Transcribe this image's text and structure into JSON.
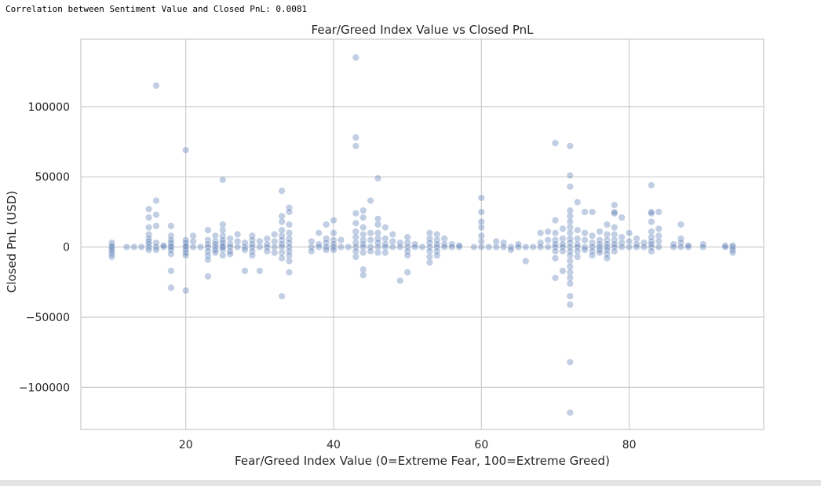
{
  "output": {
    "text": "Correlation between Sentiment Value and Closed PnL: 0.0081"
  },
  "chart_data": {
    "type": "scatter",
    "title": "Fear/Greed Index Value vs Closed PnL",
    "xlabel": "Fear/Greed Index Value (0=Extreme Fear, 100=Extreme Greed)",
    "ylabel": "Closed PnL (USD)",
    "xlim": [
      5.8,
      98.2
    ],
    "ylim": [
      -130000,
      148000
    ],
    "xticks": [
      20,
      40,
      60,
      80
    ],
    "xtick_labels": [
      "20",
      "40",
      "60",
      "80"
    ],
    "yticks": [
      -100000,
      -50000,
      0,
      50000,
      100000
    ],
    "ytick_labels": [
      "−100000",
      "−50000",
      "0",
      "50000",
      "100000"
    ],
    "grid": true,
    "point_color": "#4c72b0",
    "point_alpha": 0.35,
    "points": [
      [
        10,
        3000
      ],
      [
        10,
        1000
      ],
      [
        10,
        0
      ],
      [
        10,
        -1500
      ],
      [
        10,
        -3000
      ],
      [
        10,
        -5000
      ],
      [
        10,
        -7000
      ],
      [
        12,
        0
      ],
      [
        13,
        0
      ],
      [
        14,
        0
      ],
      [
        15,
        27000
      ],
      [
        15,
        21000
      ],
      [
        15,
        14000
      ],
      [
        15,
        9000
      ],
      [
        15,
        6000
      ],
      [
        15,
        4000
      ],
      [
        15,
        2000
      ],
      [
        15,
        0
      ],
      [
        15,
        -2000
      ],
      [
        16,
        115000
      ],
      [
        16,
        33000
      ],
      [
        16,
        23000
      ],
      [
        16,
        15000
      ],
      [
        16,
        3000
      ],
      [
        16,
        0
      ],
      [
        16,
        -2000
      ],
      [
        17,
        0
      ],
      [
        17,
        1000
      ],
      [
        18,
        15000
      ],
      [
        18,
        8000
      ],
      [
        18,
        5000
      ],
      [
        18,
        3000
      ],
      [
        18,
        1000
      ],
      [
        18,
        0
      ],
      [
        18,
        -2000
      ],
      [
        18,
        -5000
      ],
      [
        18,
        -17000
      ],
      [
        18,
        -29000
      ],
      [
        20,
        69000
      ],
      [
        20,
        5000
      ],
      [
        20,
        3000
      ],
      [
        20,
        1000
      ],
      [
        20,
        0
      ],
      [
        20,
        -2000
      ],
      [
        20,
        -4000
      ],
      [
        20,
        -6000
      ],
      [
        20,
        -31000
      ],
      [
        21,
        8000
      ],
      [
        21,
        4000
      ],
      [
        21,
        0
      ],
      [
        22,
        0
      ],
      [
        23,
        12000
      ],
      [
        23,
        5000
      ],
      [
        23,
        2000
      ],
      [
        23,
        0
      ],
      [
        23,
        -3000
      ],
      [
        23,
        -6000
      ],
      [
        23,
        -9000
      ],
      [
        23,
        -21000
      ],
      [
        24,
        8000
      ],
      [
        24,
        4000
      ],
      [
        24,
        2000
      ],
      [
        24,
        0
      ],
      [
        24,
        -2000
      ],
      [
        24,
        -4000
      ],
      [
        25,
        48000
      ],
      [
        25,
        16000
      ],
      [
        25,
        12000
      ],
      [
        25,
        8000
      ],
      [
        25,
        5000
      ],
      [
        25,
        3000
      ],
      [
        25,
        1000
      ],
      [
        25,
        0
      ],
      [
        25,
        -2000
      ],
      [
        25,
        -6000
      ],
      [
        26,
        6000
      ],
      [
        26,
        2000
      ],
      [
        26,
        0
      ],
      [
        26,
        -3000
      ],
      [
        26,
        -5000
      ],
      [
        27,
        9000
      ],
      [
        27,
        4000
      ],
      [
        27,
        0
      ],
      [
        28,
        3000
      ],
      [
        28,
        0
      ],
      [
        28,
        -2000
      ],
      [
        28,
        -17000
      ],
      [
        29,
        8000
      ],
      [
        29,
        5000
      ],
      [
        29,
        2000
      ],
      [
        29,
        0
      ],
      [
        29,
        -3000
      ],
      [
        29,
        -6000
      ],
      [
        30,
        4000
      ],
      [
        30,
        0
      ],
      [
        30,
        -17000
      ],
      [
        31,
        6000
      ],
      [
        31,
        2000
      ],
      [
        31,
        0
      ],
      [
        31,
        -3000
      ],
      [
        32,
        9000
      ],
      [
        32,
        4000
      ],
      [
        32,
        0
      ],
      [
        32,
        -4000
      ],
      [
        33,
        40000
      ],
      [
        33,
        22000
      ],
      [
        33,
        18000
      ],
      [
        33,
        12000
      ],
      [
        33,
        8000
      ],
      [
        33,
        5000
      ],
      [
        33,
        2000
      ],
      [
        33,
        0
      ],
      [
        33,
        -4000
      ],
      [
        33,
        -8000
      ],
      [
        33,
        -35000
      ],
      [
        34,
        28000
      ],
      [
        34,
        25000
      ],
      [
        34,
        16000
      ],
      [
        34,
        10000
      ],
      [
        34,
        6000
      ],
      [
        34,
        3000
      ],
      [
        34,
        0
      ],
      [
        34,
        -3000
      ],
      [
        34,
        -6000
      ],
      [
        34,
        -10000
      ],
      [
        34,
        -18000
      ],
      [
        37,
        4000
      ],
      [
        37,
        0
      ],
      [
        37,
        -3000
      ],
      [
        38,
        10000
      ],
      [
        38,
        2000
      ],
      [
        38,
        0
      ],
      [
        39,
        16000
      ],
      [
        39,
        6000
      ],
      [
        39,
        3000
      ],
      [
        39,
        0
      ],
      [
        39,
        -2000
      ],
      [
        40,
        19000
      ],
      [
        40,
        10000
      ],
      [
        40,
        5000
      ],
      [
        40,
        2000
      ],
      [
        40,
        0
      ],
      [
        40,
        -2000
      ],
      [
        41,
        5000
      ],
      [
        41,
        0
      ],
      [
        42,
        0
      ],
      [
        43,
        135000
      ],
      [
        43,
        78000
      ],
      [
        43,
        72000
      ],
      [
        43,
        24000
      ],
      [
        43,
        17000
      ],
      [
        43,
        11000
      ],
      [
        43,
        7000
      ],
      [
        43,
        3000
      ],
      [
        43,
        0
      ],
      [
        43,
        -3000
      ],
      [
        43,
        -7000
      ],
      [
        44,
        26000
      ],
      [
        44,
        21000
      ],
      [
        44,
        14000
      ],
      [
        44,
        9000
      ],
      [
        44,
        5000
      ],
      [
        44,
        2000
      ],
      [
        44,
        0
      ],
      [
        44,
        -4000
      ],
      [
        44,
        -16000
      ],
      [
        44,
        -20000
      ],
      [
        45,
        33000
      ],
      [
        45,
        10000
      ],
      [
        45,
        5000
      ],
      [
        45,
        0
      ],
      [
        45,
        -3000
      ],
      [
        46,
        49000
      ],
      [
        46,
        20000
      ],
      [
        46,
        16000
      ],
      [
        46,
        10000
      ],
      [
        46,
        6000
      ],
      [
        46,
        3000
      ],
      [
        46,
        0
      ],
      [
        46,
        -4000
      ],
      [
        47,
        14000
      ],
      [
        47,
        6000
      ],
      [
        47,
        2000
      ],
      [
        47,
        0
      ],
      [
        47,
        -4000
      ],
      [
        48,
        9000
      ],
      [
        48,
        4000
      ],
      [
        48,
        0
      ],
      [
        49,
        3000
      ],
      [
        49,
        0
      ],
      [
        49,
        -24000
      ],
      [
        50,
        7000
      ],
      [
        50,
        3000
      ],
      [
        50,
        0
      ],
      [
        50,
        -3000
      ],
      [
        50,
        -6000
      ],
      [
        50,
        -18000
      ],
      [
        51,
        2000
      ],
      [
        51,
        0
      ],
      [
        52,
        0
      ],
      [
        53,
        10000
      ],
      [
        53,
        6000
      ],
      [
        53,
        3000
      ],
      [
        53,
        0
      ],
      [
        53,
        -3000
      ],
      [
        53,
        -7000
      ],
      [
        53,
        -11000
      ],
      [
        54,
        9000
      ],
      [
        54,
        5000
      ],
      [
        54,
        2000
      ],
      [
        54,
        0
      ],
      [
        54,
        -3000
      ],
      [
        54,
        -6000
      ],
      [
        55,
        6000
      ],
      [
        55,
        2000
      ],
      [
        55,
        0
      ],
      [
        56,
        2000
      ],
      [
        56,
        0
      ],
      [
        57,
        0
      ],
      [
        57,
        1000
      ],
      [
        59,
        0
      ],
      [
        60,
        35000
      ],
      [
        60,
        25000
      ],
      [
        60,
        18000
      ],
      [
        60,
        14000
      ],
      [
        60,
        8000
      ],
      [
        60,
        4000
      ],
      [
        60,
        0
      ],
      [
        61,
        0
      ],
      [
        62,
        4000
      ],
      [
        62,
        0
      ],
      [
        63,
        3000
      ],
      [
        63,
        0
      ],
      [
        64,
        0
      ],
      [
        64,
        -2000
      ],
      [
        65,
        2000
      ],
      [
        65,
        0
      ],
      [
        66,
        0
      ],
      [
        66,
        -10000
      ],
      [
        67,
        0
      ],
      [
        68,
        10000
      ],
      [
        68,
        3000
      ],
      [
        68,
        0
      ],
      [
        69,
        11000
      ],
      [
        69,
        5000
      ],
      [
        69,
        0
      ],
      [
        70,
        74000
      ],
      [
        70,
        19000
      ],
      [
        70,
        10000
      ],
      [
        70,
        5000
      ],
      [
        70,
        2000
      ],
      [
        70,
        0
      ],
      [
        70,
        -3000
      ],
      [
        70,
        -8000
      ],
      [
        70,
        -22000
      ],
      [
        71,
        13000
      ],
      [
        71,
        6000
      ],
      [
        71,
        2000
      ],
      [
        71,
        0
      ],
      [
        71,
        -3000
      ],
      [
        71,
        -17000
      ],
      [
        72,
        72000
      ],
      [
        72,
        51000
      ],
      [
        72,
        43000
      ],
      [
        72,
        26000
      ],
      [
        72,
        22000
      ],
      [
        72,
        18000
      ],
      [
        72,
        14000
      ],
      [
        72,
        10000
      ],
      [
        72,
        6000
      ],
      [
        72,
        3000
      ],
      [
        72,
        0
      ],
      [
        72,
        -3000
      ],
      [
        72,
        -6000
      ],
      [
        72,
        -10000
      ],
      [
        72,
        -14000
      ],
      [
        72,
        -18000
      ],
      [
        72,
        -22000
      ],
      [
        72,
        -26000
      ],
      [
        72,
        -35000
      ],
      [
        72,
        -41000
      ],
      [
        72,
        -82000
      ],
      [
        72,
        -118000
      ],
      [
        73,
        32000
      ],
      [
        73,
        12000
      ],
      [
        73,
        6000
      ],
      [
        73,
        2000
      ],
      [
        73,
        0
      ],
      [
        73,
        -3000
      ],
      [
        73,
        -7000
      ],
      [
        74,
        25000
      ],
      [
        74,
        10000
      ],
      [
        74,
        5000
      ],
      [
        74,
        0
      ],
      [
        74,
        -2000
      ],
      [
        75,
        25000
      ],
      [
        75,
        8000
      ],
      [
        75,
        3000
      ],
      [
        75,
        0
      ],
      [
        75,
        -3000
      ],
      [
        75,
        -6000
      ],
      [
        76,
        11000
      ],
      [
        76,
        5000
      ],
      [
        76,
        2000
      ],
      [
        76,
        0
      ],
      [
        76,
        -2000
      ],
      [
        76,
        -4000
      ],
      [
        77,
        16000
      ],
      [
        77,
        9000
      ],
      [
        77,
        5000
      ],
      [
        77,
        2000
      ],
      [
        77,
        0
      ],
      [
        77,
        -2000
      ],
      [
        77,
        -5000
      ],
      [
        77,
        -8000
      ],
      [
        78,
        30000
      ],
      [
        78,
        25000
      ],
      [
        78,
        24000
      ],
      [
        78,
        14000
      ],
      [
        78,
        9000
      ],
      [
        78,
        5000
      ],
      [
        78,
        2000
      ],
      [
        78,
        0
      ],
      [
        78,
        -3000
      ],
      [
        79,
        21000
      ],
      [
        79,
        7000
      ],
      [
        79,
        3000
      ],
      [
        79,
        0
      ],
      [
        80,
        10000
      ],
      [
        80,
        4000
      ],
      [
        80,
        0
      ],
      [
        81,
        6000
      ],
      [
        81,
        2000
      ],
      [
        81,
        0
      ],
      [
        82,
        3000
      ],
      [
        82,
        0
      ],
      [
        83,
        44000
      ],
      [
        83,
        25000
      ],
      [
        83,
        24000
      ],
      [
        83,
        18000
      ],
      [
        83,
        11000
      ],
      [
        83,
        7000
      ],
      [
        83,
        4000
      ],
      [
        83,
        2000
      ],
      [
        83,
        0
      ],
      [
        83,
        -3000
      ],
      [
        84,
        25000
      ],
      [
        84,
        13000
      ],
      [
        84,
        8000
      ],
      [
        84,
        4000
      ],
      [
        84,
        0
      ],
      [
        86,
        2000
      ],
      [
        86,
        0
      ],
      [
        87,
        16000
      ],
      [
        87,
        6000
      ],
      [
        87,
        3000
      ],
      [
        87,
        0
      ],
      [
        88,
        0
      ],
      [
        88,
        1000
      ],
      [
        90,
        2000
      ],
      [
        90,
        0
      ],
      [
        93,
        1000
      ],
      [
        93,
        0
      ],
      [
        94,
        1000
      ],
      [
        94,
        0
      ],
      [
        94,
        -2000
      ],
      [
        94,
        -4000
      ]
    ]
  }
}
